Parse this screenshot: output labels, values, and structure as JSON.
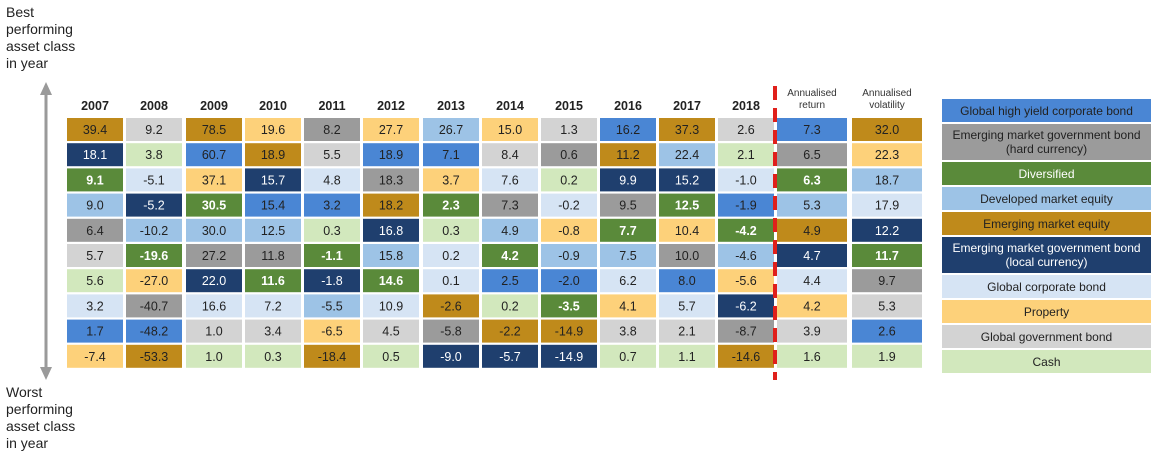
{
  "labels": {
    "top": "Best performing asset class in year",
    "bottom": "Worst performing asset class in year"
  },
  "chart_data": {
    "type": "table",
    "years": [
      "2007",
      "2008",
      "2009",
      "2010",
      "2011",
      "2012",
      "2013",
      "2014",
      "2015",
      "2016",
      "2017",
      "2018"
    ],
    "summary_headers": [
      "Annualised return",
      "Annualised volatility"
    ],
    "colors": {
      "hy": "#4a86d4",
      "emh": "#9b9b9b",
      "div": "#5a8a3a",
      "dme": "#9dc3e6",
      "eme": "#bf8a1b",
      "eml": "#1f3f6e",
      "gcb": "#d6e4f4",
      "prop": "#fdd17a",
      "ggb": "#d3d3d3",
      "cash": "#d2e8bd"
    },
    "legend": [
      {
        "key": "hy",
        "label": "Global high yield corporate bond"
      },
      {
        "key": "emh",
        "label": "Emerging market government bond (hard currency)"
      },
      {
        "key": "div",
        "label": "Diversified"
      },
      {
        "key": "dme",
        "label": "Developed market equity"
      },
      {
        "key": "eme",
        "label": "Emerging market equity"
      },
      {
        "key": "eml",
        "label": "Emerging market government bond (local currency)"
      },
      {
        "key": "gcb",
        "label": "Global corporate bond"
      },
      {
        "key": "prop",
        "label": "Property"
      },
      {
        "key": "ggb",
        "label": "Global government bond"
      },
      {
        "key": "cash",
        "label": "Cash"
      }
    ],
    "columns": [
      [
        [
          "39.4",
          "eme"
        ],
        [
          "18.1",
          "eml"
        ],
        [
          "9.1",
          "div"
        ],
        [
          "9.0",
          "dme"
        ],
        [
          "6.4",
          "emh"
        ],
        [
          "5.7",
          "ggb"
        ],
        [
          "5.6",
          "cash"
        ],
        [
          "3.2",
          "gcb"
        ],
        [
          "1.7",
          "hy"
        ],
        [
          "-7.4",
          "prop"
        ]
      ],
      [
        [
          "9.2",
          "ggb"
        ],
        [
          "3.8",
          "cash"
        ],
        [
          "-5.1",
          "gcb"
        ],
        [
          "-5.2",
          "eml"
        ],
        [
          "-10.2",
          "dme"
        ],
        [
          "-19.6",
          "div"
        ],
        [
          "-27.0",
          "prop"
        ],
        [
          "-40.7",
          "emh"
        ],
        [
          "-48.2",
          "hy"
        ],
        [
          "-53.3",
          "eme"
        ]
      ],
      [
        [
          "78.5",
          "eme"
        ],
        [
          "60.7",
          "hy"
        ],
        [
          "37.1",
          "prop"
        ],
        [
          "30.5",
          "div"
        ],
        [
          "30.0",
          "dme"
        ],
        [
          "27.2",
          "emh"
        ],
        [
          "22.0",
          "eml"
        ],
        [
          "16.6",
          "gcb"
        ],
        [
          "1.0",
          "ggb"
        ],
        [
          "1.0",
          "cash"
        ]
      ],
      [
        [
          "19.6",
          "prop"
        ],
        [
          "18.9",
          "eme"
        ],
        [
          "15.7",
          "eml"
        ],
        [
          "15.4",
          "hy"
        ],
        [
          "12.5",
          "dme"
        ],
        [
          "11.8",
          "emh"
        ],
        [
          "11.6",
          "div"
        ],
        [
          "7.2",
          "gcb"
        ],
        [
          "3.4",
          "ggb"
        ],
        [
          "0.3",
          "cash"
        ]
      ],
      [
        [
          "8.2",
          "emh"
        ],
        [
          "5.5",
          "ggb"
        ],
        [
          "4.8",
          "gcb"
        ],
        [
          "3.2",
          "hy"
        ],
        [
          "0.3",
          "cash"
        ],
        [
          "-1.1",
          "div"
        ],
        [
          "-1.8",
          "eml"
        ],
        [
          "-5.5",
          "dme"
        ],
        [
          "-6.5",
          "prop"
        ],
        [
          "-18.4",
          "eme"
        ]
      ],
      [
        [
          "27.7",
          "prop"
        ],
        [
          "18.9",
          "hy"
        ],
        [
          "18.3",
          "emh"
        ],
        [
          "18.2",
          "eme"
        ],
        [
          "16.8",
          "eml"
        ],
        [
          "15.8",
          "dme"
        ],
        [
          "14.6",
          "div"
        ],
        [
          "10.9",
          "gcb"
        ],
        [
          "4.5",
          "ggb"
        ],
        [
          "0.5",
          "cash"
        ]
      ],
      [
        [
          "26.7",
          "dme"
        ],
        [
          "7.1",
          "hy"
        ],
        [
          "3.7",
          "prop"
        ],
        [
          "2.3",
          "div"
        ],
        [
          "0.3",
          "cash"
        ],
        [
          "0.2",
          "gcb"
        ],
        [
          "0.1",
          "gcb"
        ],
        [
          "-2.6",
          "eme"
        ],
        [
          "-5.8",
          "emh"
        ],
        [
          "-9.0",
          "eml"
        ]
      ],
      [
        [
          "15.0",
          "prop"
        ],
        [
          "8.4",
          "ggb"
        ],
        [
          "7.6",
          "gcb"
        ],
        [
          "7.3",
          "emh"
        ],
        [
          "4.9",
          "dme"
        ],
        [
          "4.2",
          "div"
        ],
        [
          "2.5",
          "hy"
        ],
        [
          "0.2",
          "cash"
        ],
        [
          "-2.2",
          "eme"
        ],
        [
          "-5.7",
          "eml"
        ]
      ],
      [
        [
          "1.3",
          "ggb"
        ],
        [
          "0.6",
          "emh"
        ],
        [
          "0.2",
          "cash"
        ],
        [
          "-0.2",
          "gcb"
        ],
        [
          "-0.8",
          "prop"
        ],
        [
          "-0.9",
          "dme"
        ],
        [
          "-2.0",
          "hy"
        ],
        [
          "-3.5",
          "div"
        ],
        [
          "-14.9",
          "eme"
        ],
        [
          "-14.9",
          "eml"
        ]
      ],
      [
        [
          "16.2",
          "hy"
        ],
        [
          "11.2",
          "eme"
        ],
        [
          "9.9",
          "eml"
        ],
        [
          "9.5",
          "emh"
        ],
        [
          "7.7",
          "div"
        ],
        [
          "7.5",
          "dme"
        ],
        [
          "6.2",
          "gcb"
        ],
        [
          "4.1",
          "prop"
        ],
        [
          "3.8",
          "ggb"
        ],
        [
          "0.7",
          "cash"
        ]
      ],
      [
        [
          "37.3",
          "eme"
        ],
        [
          "22.4",
          "dme"
        ],
        [
          "15.2",
          "eml"
        ],
        [
          "12.5",
          "div"
        ],
        [
          "10.4",
          "prop"
        ],
        [
          "10.0",
          "emh"
        ],
        [
          "8.0",
          "hy"
        ],
        [
          "5.7",
          "gcb"
        ],
        [
          "2.1",
          "ggb"
        ],
        [
          "1.1",
          "cash"
        ]
      ],
      [
        [
          "2.6",
          "ggb"
        ],
        [
          "2.1",
          "cash"
        ],
        [
          "-1.0",
          "gcb"
        ],
        [
          "-1.9",
          "hy"
        ],
        [
          "-4.2",
          "div"
        ],
        [
          "-4.6",
          "dme"
        ],
        [
          "-5.6",
          "prop"
        ],
        [
          "-6.2",
          "eml"
        ],
        [
          "-8.7",
          "emh"
        ],
        [
          "-14.6",
          "eme"
        ]
      ]
    ],
    "annualised_return": [
      [
        "7.3",
        "hy"
      ],
      [
        "6.5",
        "emh"
      ],
      [
        "6.3",
        "div"
      ],
      [
        "5.3",
        "dme"
      ],
      [
        "4.9",
        "eme"
      ],
      [
        "4.7",
        "eml"
      ],
      [
        "4.4",
        "gcb"
      ],
      [
        "4.2",
        "prop"
      ],
      [
        "3.9",
        "ggb"
      ],
      [
        "1.6",
        "cash"
      ]
    ],
    "annualised_volatility": [
      [
        "32.0",
        "eme"
      ],
      [
        "22.3",
        "prop"
      ],
      [
        "18.7",
        "dme"
      ],
      [
        "17.9",
        "gcb"
      ],
      [
        "12.2",
        "eml"
      ],
      [
        "11.7",
        "div"
      ],
      [
        "9.7",
        "emh"
      ],
      [
        "5.3",
        "ggb"
      ],
      [
        "2.6",
        "hy"
      ],
      [
        "1.9",
        "cash"
      ]
    ]
  }
}
